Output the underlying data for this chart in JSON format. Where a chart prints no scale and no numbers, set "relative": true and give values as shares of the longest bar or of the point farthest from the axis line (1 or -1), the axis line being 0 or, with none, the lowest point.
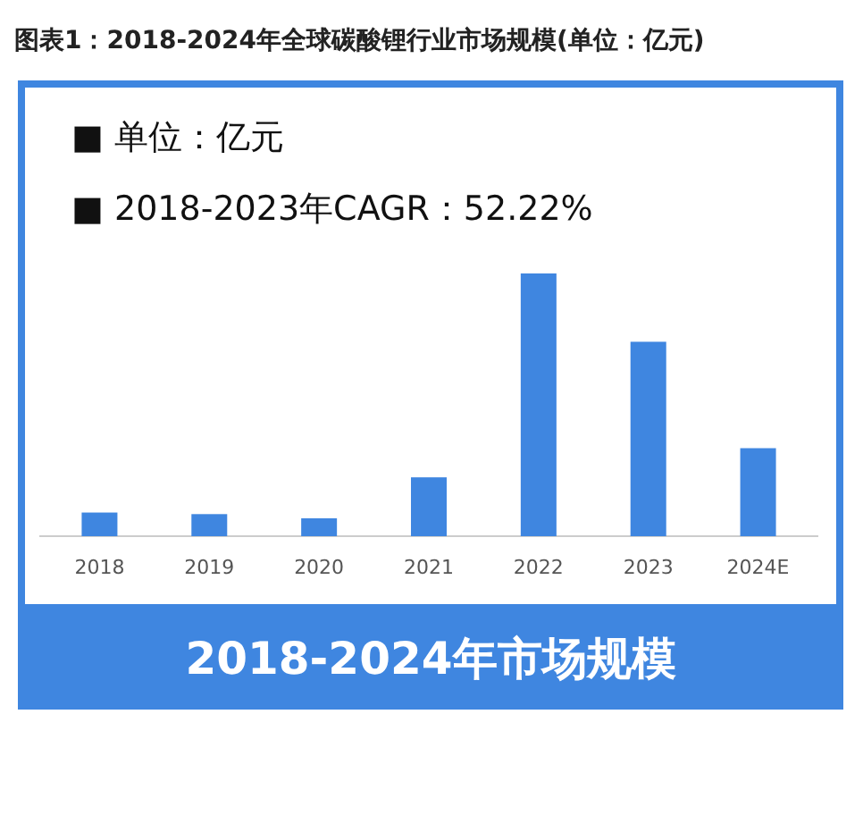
{
  "chart_data": {
    "type": "bar",
    "title": "图表1：2018-2024年全球碳酸锂行业市场规模(单位：亿元)",
    "subtitle": "2018-2024年市场规模",
    "annotations": [
      "■  单位：亿元",
      "■  2018-2023年CAGR：52.22%"
    ],
    "categories": [
      "2018",
      "2019",
      "2020",
      "2021",
      "2022",
      "2023",
      "2024E"
    ],
    "values": [
      0.09,
      0.084,
      0.068,
      0.224,
      1,
      0.74,
      0.335
    ],
    "color": "#3f86e0",
    "relative": true
  }
}
